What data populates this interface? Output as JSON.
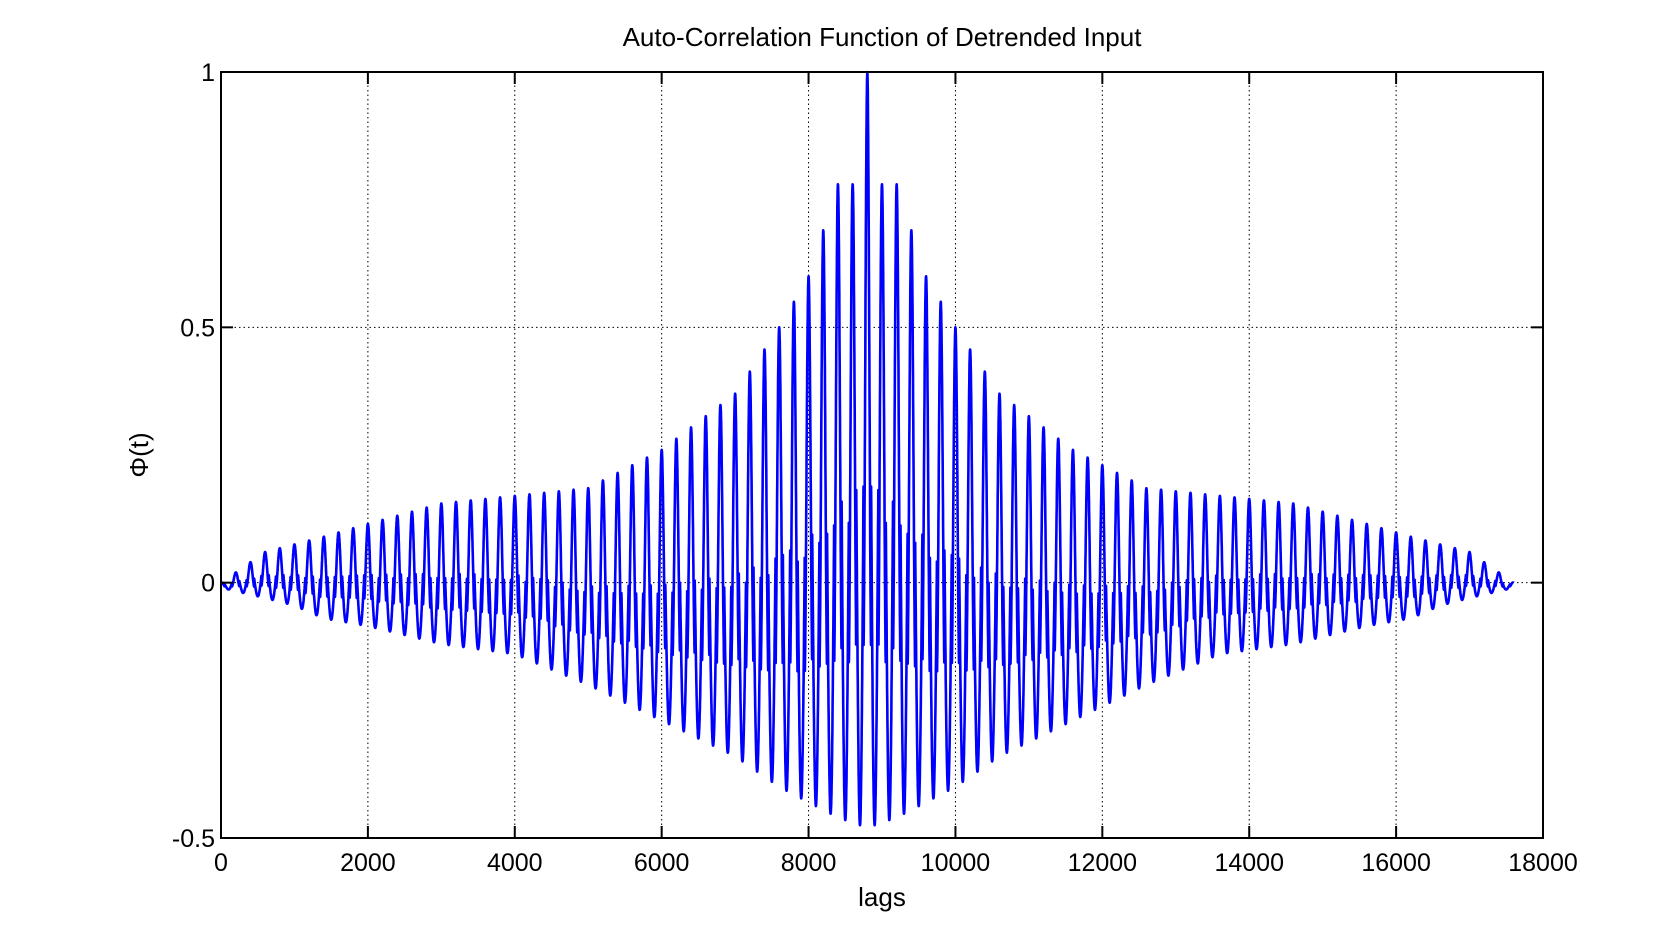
{
  "chart_data": {
    "type": "line",
    "title": "Auto-Correlation Function of Detrended Input",
    "xlabel": "lags",
    "ylabel": "Φ(t)",
    "xlim": [
      0,
      18000
    ],
    "ylim": [
      -0.5,
      1
    ],
    "xticks": [
      0,
      2000,
      4000,
      6000,
      8000,
      10000,
      12000,
      14000,
      16000,
      18000
    ],
    "xtick_labels": [
      "0",
      "2000",
      "4000",
      "6000",
      "8000",
      "10000",
      "12000",
      "14000",
      "16000",
      "18000"
    ],
    "yticks": [
      -0.5,
      0,
      0.5,
      1
    ],
    "ytick_labels": [
      "-0.5",
      "0",
      "0.5",
      "1"
    ],
    "grid": true,
    "series_color": "#0000ff",
    "lag_range": [
      0,
      17600
    ],
    "center_lag": 8800,
    "oscillation_period": 200,
    "peak_maxima": [
      [
        0,
        0.0
      ],
      [
        600,
        0.06
      ],
      [
        1000,
        0.075
      ],
      [
        1400,
        0.09
      ],
      [
        2000,
        0.115
      ],
      [
        3000,
        0.155
      ],
      [
        4000,
        0.17
      ],
      [
        5000,
        0.185
      ],
      [
        6000,
        0.26
      ],
      [
        7000,
        0.37
      ],
      [
        7600,
        0.5
      ],
      [
        8000,
        0.6
      ],
      [
        8400,
        0.78
      ],
      [
        8600,
        0.78
      ],
      [
        8800,
        1.0
      ],
      [
        9000,
        0.78
      ],
      [
        9200,
        0.78
      ],
      [
        9600,
        0.6
      ],
      [
        10000,
        0.5
      ],
      [
        10600,
        0.37
      ],
      [
        11600,
        0.26
      ],
      [
        12600,
        0.185
      ],
      [
        13600,
        0.17
      ],
      [
        14600,
        0.155
      ],
      [
        15600,
        0.115
      ],
      [
        16200,
        0.09
      ],
      [
        16600,
        0.075
      ],
      [
        17000,
        0.06
      ],
      [
        17600,
        0.0
      ]
    ],
    "peak_minima": [
      [
        0,
        -0.01
      ],
      [
        600,
        -0.03
      ],
      [
        1000,
        -0.045
      ],
      [
        1400,
        -0.07
      ],
      [
        2000,
        -0.085
      ],
      [
        3000,
        -0.12
      ],
      [
        4000,
        -0.14
      ],
      [
        5000,
        -0.2
      ],
      [
        6000,
        -0.27
      ],
      [
        7000,
        -0.34
      ],
      [
        7600,
        -0.4
      ],
      [
        8000,
        -0.43
      ],
      [
        8400,
        -0.46
      ],
      [
        8800,
        -0.48
      ],
      [
        9200,
        -0.46
      ],
      [
        9600,
        -0.43
      ],
      [
        10000,
        -0.4
      ],
      [
        10600,
        -0.34
      ],
      [
        11600,
        -0.27
      ],
      [
        12600,
        -0.2
      ],
      [
        13600,
        -0.14
      ],
      [
        14600,
        -0.12
      ],
      [
        15600,
        -0.085
      ],
      [
        16200,
        -0.07
      ],
      [
        16600,
        -0.045
      ],
      [
        17000,
        -0.03
      ],
      [
        17600,
        -0.01
      ]
    ]
  }
}
